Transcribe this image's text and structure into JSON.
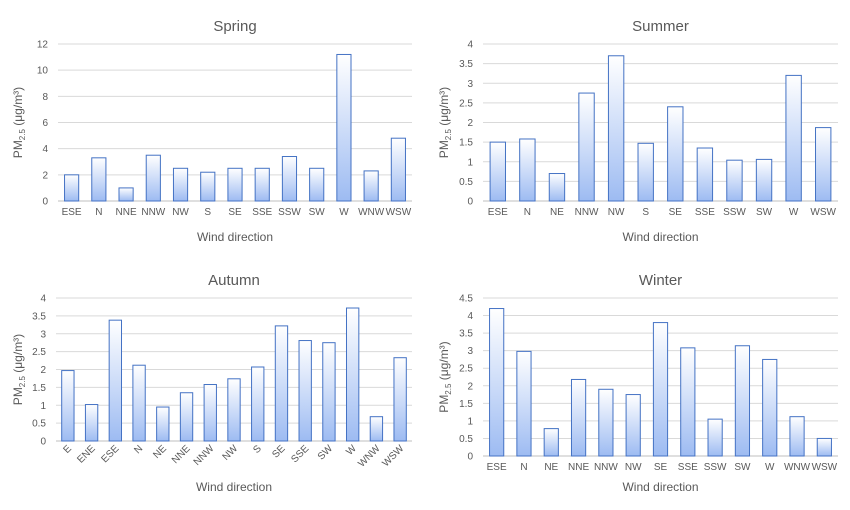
{
  "chart_data": [
    {
      "type": "bar",
      "title": "Spring",
      "xlabel": "Wind direction",
      "ylabel_main": "PM",
      "ylabel_sub": "2.5",
      "ylabel_unit": " (μg/m³)",
      "ylim": [
        0,
        12
      ],
      "yticks": [
        "0",
        "2",
        "4",
        "6",
        "8",
        "10",
        "12"
      ],
      "grid": true,
      "categories": [
        "ESE",
        "N",
        "NNE",
        "NNW",
        "NW",
        "S",
        "SE",
        "SSE",
        "SSW",
        "SW",
        "W",
        "WNW",
        "WSW"
      ],
      "values": [
        2.0,
        3.3,
        1.0,
        3.5,
        2.5,
        2.2,
        2.5,
        2.5,
        3.4,
        2.5,
        11.2,
        2.3,
        4.8
      ]
    },
    {
      "type": "bar",
      "title": "Summer",
      "xlabel": "Wind direction",
      "ylabel_main": "PM",
      "ylabel_sub": "2.5",
      "ylabel_unit": " (μg/m³)",
      "ylim": [
        0,
        4
      ],
      "yticks": [
        "0",
        "0.5",
        "1",
        "1.5",
        "2",
        "2.5",
        "3",
        "3.5",
        "4"
      ],
      "grid": true,
      "categories": [
        "ESE",
        "N",
        "NE",
        "NNW",
        "NW",
        "S",
        "SE",
        "SSE",
        "SSW",
        "SW",
        "W",
        "WSW"
      ],
      "values": [
        1.5,
        1.58,
        0.7,
        2.75,
        3.7,
        1.47,
        2.4,
        1.35,
        1.04,
        1.06,
        3.2,
        1.87
      ]
    },
    {
      "type": "bar",
      "title": "Autumn",
      "xlabel": "Wind direction",
      "ylabel_main": "PM",
      "ylabel_sub": "2.5",
      "ylabel_unit": " (μg/m³)",
      "ylim": [
        0,
        4
      ],
      "yticks": [
        "0",
        "0.5",
        "1",
        "1.5",
        "2",
        "2.5",
        "3",
        "3.5",
        "4"
      ],
      "grid": true,
      "categories": [
        "E",
        "ENE",
        "ESE",
        "N",
        "NE",
        "NNE",
        "NNW",
        "NW",
        "S",
        "SE",
        "SSE",
        "SW",
        "W",
        "WNW",
        "WSW"
      ],
      "values": [
        1.97,
        1.02,
        3.38,
        2.12,
        0.95,
        1.35,
        1.58,
        1.74,
        2.07,
        3.22,
        2.81,
        2.75,
        3.72,
        0.68,
        2.33
      ]
    },
    {
      "type": "bar",
      "title": "Winter",
      "xlabel": "Wind direction",
      "ylabel_main": "PM",
      "ylabel_sub": "2.5",
      "ylabel_unit": " (μg/m³)",
      "ylim": [
        0,
        4.5
      ],
      "yticks": [
        "0",
        "0.5",
        "1",
        "1.5",
        "2",
        "2.5",
        "3",
        "3.5",
        "4",
        "4.5"
      ],
      "grid": true,
      "categories": [
        "ESE",
        "N",
        "NE",
        "NNE",
        "NNW",
        "NW",
        "SE",
        "SSE",
        "SSW",
        "SW",
        "W",
        "WNW",
        "WSW"
      ],
      "values": [
        4.2,
        2.98,
        0.78,
        2.18,
        1.9,
        1.75,
        3.8,
        3.08,
        1.05,
        3.14,
        2.75,
        1.12,
        0.5
      ]
    }
  ],
  "colors": {
    "bar_fill_top": "#ffffff",
    "bar_fill_bottom": "#9dbbf2",
    "bar_stroke": "#4472c4",
    "gridline": "#d9d9d9",
    "text": "#595959"
  }
}
